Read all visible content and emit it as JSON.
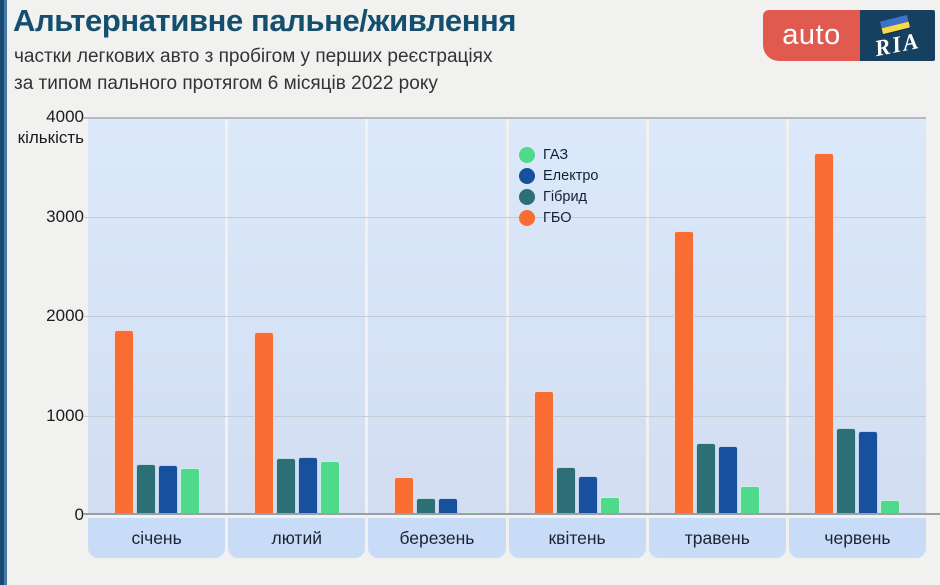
{
  "header": {
    "title": "Альтернативне пальне/живлення",
    "subtitle_line1": "частки легкових авто з пробігом у перших реєстраціях",
    "subtitle_line2": "за типом пального протягом 6 місяців 2022 року"
  },
  "logo": {
    "auto_text": "auto",
    "ria_text": "RIA",
    "auto_bg_color": "#e15a50",
    "ria_bg_color": "#16405f",
    "flag_blue": "#3f71c8",
    "flag_yellow": "#f8d948"
  },
  "chart_data": {
    "type": "bar",
    "title": "Альтернативне пальне/живлення",
    "xlabel": "",
    "ylabel": "кількість",
    "ylim": [
      0,
      4000
    ],
    "yticks": [
      0,
      1000,
      2000,
      3000,
      4000
    ],
    "grid": true,
    "legend_position": "inside-top-center",
    "categories": [
      "січень",
      "лютий",
      "березень",
      "квітень",
      "травень",
      "червень"
    ],
    "series": [
      {
        "name": "ГБО",
        "color": "#f96d33",
        "values": [
          1855,
          1840,
          380,
          1245,
          2855,
          3640
        ]
      },
      {
        "name": "Гібрид",
        "color": "#2c6f76",
        "values": [
          510,
          570,
          168,
          480,
          720,
          870
        ]
      },
      {
        "name": "Електро",
        "color": "#16509f",
        "values": [
          505,
          585,
          175,
          390,
          695,
          845
        ]
      },
      {
        "name": "ГАЗ",
        "color": "#4fd98a",
        "values": [
          470,
          545,
          30,
          185,
          295,
          150
        ]
      }
    ],
    "legend": [
      {
        "name": "ГАЗ",
        "color": "#4fd98a"
      },
      {
        "name": "Електро",
        "color": "#16509f"
      },
      {
        "name": "Гібрид",
        "color": "#2c6f76"
      },
      {
        "name": "ГБО",
        "color": "#f96d33"
      }
    ]
  }
}
